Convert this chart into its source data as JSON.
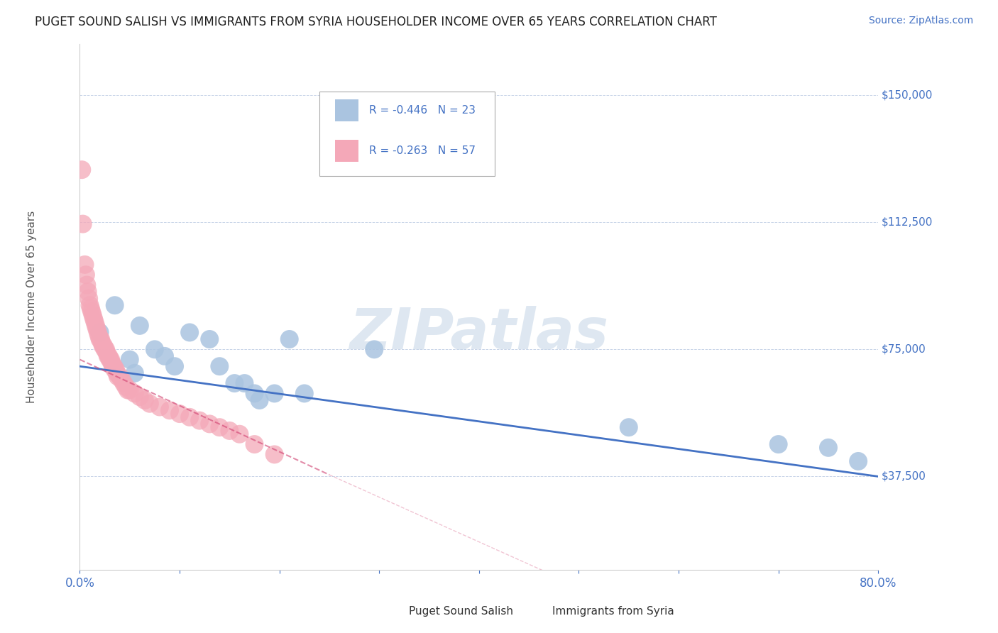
{
  "title": "PUGET SOUND SALISH VS IMMIGRANTS FROM SYRIA HOUSEHOLDER INCOME OVER 65 YEARS CORRELATION CHART",
  "source": "Source: ZipAtlas.com",
  "ylabel": "Householder Income Over 65 years",
  "ylabel_ticks": [
    "$37,500",
    "$75,000",
    "$112,500",
    "$150,000"
  ],
  "ylabel_values": [
    37500,
    75000,
    112500,
    150000
  ],
  "ymin": 10000,
  "ymax": 165000,
  "xmin": 0.0,
  "xmax": 0.8,
  "legend_blue": {
    "R": "-0.446",
    "N": "23"
  },
  "legend_pink": {
    "R": "-0.263",
    "N": "57"
  },
  "blue_color": "#aac4e0",
  "pink_color": "#f4a8b8",
  "blue_line_color": "#4472c4",
  "pink_line_color": "#d04070",
  "title_color": "#222222",
  "source_color": "#4472c4",
  "axis_color": "#4472c4",
  "grid_color": "#c8d4e8",
  "watermark_color": "#c8d8e8",
  "blue_points": [
    [
      0.02,
      80000
    ],
    [
      0.035,
      88000
    ],
    [
      0.05,
      72000
    ],
    [
      0.055,
      68000
    ],
    [
      0.06,
      82000
    ],
    [
      0.075,
      75000
    ],
    [
      0.085,
      73000
    ],
    [
      0.095,
      70000
    ],
    [
      0.11,
      80000
    ],
    [
      0.13,
      78000
    ],
    [
      0.14,
      70000
    ],
    [
      0.155,
      65000
    ],
    [
      0.165,
      65000
    ],
    [
      0.175,
      62000
    ],
    [
      0.18,
      60000
    ],
    [
      0.195,
      62000
    ],
    [
      0.21,
      78000
    ],
    [
      0.225,
      62000
    ],
    [
      0.295,
      75000
    ],
    [
      0.55,
      52000
    ],
    [
      0.7,
      47000
    ],
    [
      0.75,
      46000
    ],
    [
      0.78,
      42000
    ]
  ],
  "pink_points": [
    [
      0.002,
      128000
    ],
    [
      0.005,
      100000
    ],
    [
      0.006,
      97000
    ],
    [
      0.007,
      94000
    ],
    [
      0.008,
      92000
    ],
    [
      0.009,
      90000
    ],
    [
      0.01,
      88000
    ],
    [
      0.011,
      87000
    ],
    [
      0.012,
      86000
    ],
    [
      0.013,
      85000
    ],
    [
      0.014,
      84000
    ],
    [
      0.015,
      83000
    ],
    [
      0.016,
      82000
    ],
    [
      0.017,
      81000
    ],
    [
      0.018,
      80000
    ],
    [
      0.019,
      79000
    ],
    [
      0.02,
      78000
    ],
    [
      0.021,
      78000
    ],
    [
      0.022,
      77000
    ],
    [
      0.023,
      76000
    ],
    [
      0.024,
      76000
    ],
    [
      0.025,
      75000
    ],
    [
      0.026,
      75000
    ],
    [
      0.027,
      74000
    ],
    [
      0.028,
      73000
    ],
    [
      0.029,
      73000
    ],
    [
      0.03,
      72000
    ],
    [
      0.031,
      72000
    ],
    [
      0.032,
      71000
    ],
    [
      0.033,
      70000
    ],
    [
      0.034,
      70000
    ],
    [
      0.035,
      69000
    ],
    [
      0.036,
      69000
    ],
    [
      0.037,
      68000
    ],
    [
      0.038,
      67000
    ],
    [
      0.04,
      67000
    ],
    [
      0.042,
      66000
    ],
    [
      0.044,
      65000
    ],
    [
      0.046,
      64000
    ],
    [
      0.048,
      63000
    ],
    [
      0.05,
      63000
    ],
    [
      0.055,
      62000
    ],
    [
      0.06,
      61000
    ],
    [
      0.065,
      60000
    ],
    [
      0.07,
      59000
    ],
    [
      0.08,
      58000
    ],
    [
      0.09,
      57000
    ],
    [
      0.1,
      56000
    ],
    [
      0.11,
      55000
    ],
    [
      0.12,
      54000
    ],
    [
      0.13,
      53000
    ],
    [
      0.14,
      52000
    ],
    [
      0.15,
      51000
    ],
    [
      0.16,
      50000
    ],
    [
      0.175,
      47000
    ],
    [
      0.195,
      44000
    ],
    [
      0.003,
      112000
    ]
  ],
  "figsize": [
    14.06,
    8.92
  ],
  "dpi": 100
}
